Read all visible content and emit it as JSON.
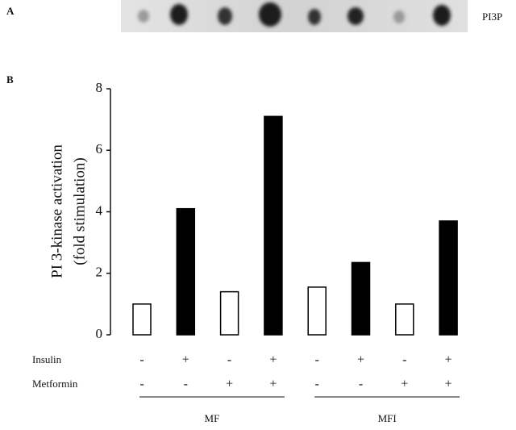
{
  "chart_data": {
    "type": "bar",
    "panel_labels": [
      "A",
      "B"
    ],
    "blot_label": "PI3P",
    "ylabel": [
      "PI 3-kinase activation",
      "(fold stimulation)"
    ],
    "values": [
      1.0,
      4.1,
      1.4,
      7.1,
      1.55,
      2.35,
      1.0,
      3.7
    ],
    "colors": [
      "#ffffff",
      "#000000",
      "#ffffff",
      "#000000",
      "#ffffff",
      "#000000",
      "#ffffff",
      "#000000"
    ],
    "ylim": [
      0,
      8
    ],
    "yticks": [
      0,
      2,
      4,
      6,
      8
    ],
    "treatments": [
      {
        "name": "Insulin",
        "signs": [
          "-",
          "+",
          "-",
          "+",
          "-",
          "+",
          "-",
          "+"
        ]
      },
      {
        "name": "Metformin",
        "signs": [
          "-",
          "-",
          "+",
          "+",
          "-",
          "-",
          "+",
          "+"
        ]
      }
    ],
    "groups": [
      "MF",
      "MFI"
    ]
  }
}
